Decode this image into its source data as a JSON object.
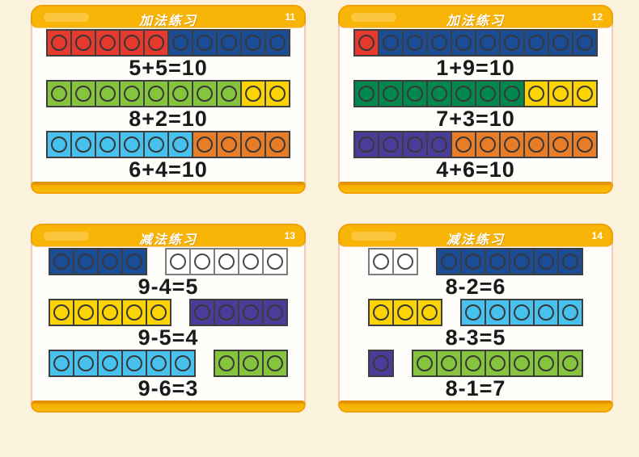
{
  "page": {
    "background": "#FBF2DE"
  },
  "theme": {
    "header_color": "#F9B507",
    "header_outline": "#F0A003",
    "footer_color": "#F7B100",
    "card_border": "#F2C9C0",
    "title_color": "#FFFFFF",
    "equation_color": "#1A1A1A",
    "block_border": "#3E3E3E",
    "white_block_border": "#7E7E7E"
  },
  "block_colors": {
    "red": "#E63A2E",
    "blue": "#1B4C96",
    "green": "#86C43D",
    "yellow": "#FCD303",
    "cyan": "#47C2EE",
    "orange": "#E87D27",
    "darkgreen": "#00884F",
    "purple": "#4A3C98",
    "white": "#FFFFFF"
  },
  "cards": [
    {
      "number": "11",
      "title": "加法练习",
      "layout": "joined",
      "rows": [
        {
          "equation": "5+5=10",
          "groups": [
            {
              "color": "red",
              "count": 5
            },
            {
              "color": "blue",
              "count": 5
            }
          ]
        },
        {
          "equation": "8+2=10",
          "groups": [
            {
              "color": "green",
              "count": 8
            },
            {
              "color": "yellow",
              "count": 2
            }
          ]
        },
        {
          "equation": "6+4=10",
          "groups": [
            {
              "color": "cyan",
              "count": 6
            },
            {
              "color": "orange",
              "count": 4
            }
          ]
        }
      ]
    },
    {
      "number": "12",
      "title": "加法练习",
      "layout": "joined",
      "rows": [
        {
          "equation": "1+9=10",
          "groups": [
            {
              "color": "red",
              "count": 1
            },
            {
              "color": "blue",
              "count": 9
            }
          ]
        },
        {
          "equation": "7+3=10",
          "groups": [
            {
              "color": "darkgreen",
              "count": 7
            },
            {
              "color": "yellow",
              "count": 3
            }
          ]
        },
        {
          "equation": "4+6=10",
          "groups": [
            {
              "color": "purple",
              "count": 4
            },
            {
              "color": "orange",
              "count": 6
            }
          ]
        }
      ]
    },
    {
      "number": "13",
      "title": "减法练习",
      "layout": "split",
      "rows": [
        {
          "equation": "9-4=5",
          "groups": [
            {
              "color": "blue",
              "count": 4
            },
            {
              "color": "white",
              "count": 5
            }
          ]
        },
        {
          "equation": "9-5=4",
          "groups": [
            {
              "color": "yellow",
              "count": 5
            },
            {
              "color": "purple",
              "count": 4
            }
          ]
        },
        {
          "equation": "9-6=3",
          "groups": [
            {
              "color": "cyan",
              "count": 6
            },
            {
              "color": "green",
              "count": 3
            }
          ]
        }
      ]
    },
    {
      "number": "14",
      "title": "减法练习",
      "layout": "split",
      "rows": [
        {
          "equation": "8-2=6",
          "groups": [
            {
              "color": "white",
              "count": 2
            },
            {
              "color": "blue",
              "count": 6
            }
          ]
        },
        {
          "equation": "8-3=5",
          "groups": [
            {
              "color": "yellow",
              "count": 3
            },
            {
              "color": "cyan",
              "count": 5
            }
          ]
        },
        {
          "equation": "8-1=7",
          "groups": [
            {
              "color": "purple",
              "count": 1
            },
            {
              "color": "green",
              "count": 7
            }
          ]
        }
      ]
    }
  ]
}
